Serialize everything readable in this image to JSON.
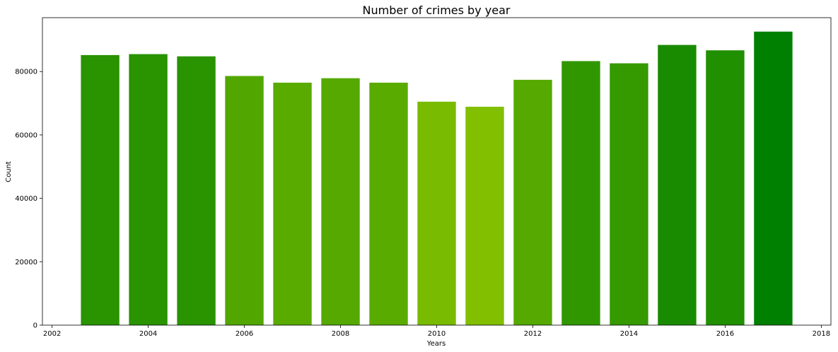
{
  "chart_data": {
    "type": "bar",
    "title": "Number of crimes by year",
    "xlabel": "Years",
    "ylabel": "Count",
    "x": [
      2003,
      2004,
      2005,
      2006,
      2007,
      2008,
      2009,
      2010,
      2011,
      2012,
      2013,
      2014,
      2015,
      2016,
      2017
    ],
    "values": [
      85200,
      85500,
      84800,
      78600,
      76500,
      77900,
      76500,
      70500,
      68900,
      77400,
      83300,
      82600,
      88400,
      86700,
      92600
    ],
    "colors": [
      "#299300",
      "#299300",
      "#299300",
      "#51a700",
      "#59ab00",
      "#55a900",
      "#59ab00",
      "#79bb00",
      "#81bf00",
      "#55a900",
      "#319700",
      "#359900",
      "#198b00",
      "#219000",
      "#008000"
    ],
    "xlim": [
      2001.8,
      2018.2
    ],
    "ylim": [
      0,
      97000
    ],
    "xticks": [
      2002,
      2004,
      2006,
      2008,
      2010,
      2012,
      2014,
      2016,
      2018
    ],
    "yticks": [
      0,
      20000,
      40000,
      60000,
      80000
    ],
    "bar_width": 0.8,
    "grid": false,
    "legend": "none"
  }
}
